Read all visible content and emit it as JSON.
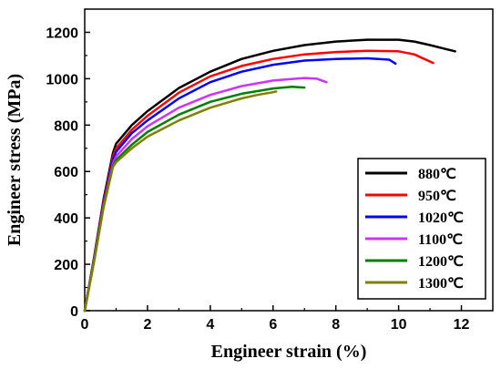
{
  "chart_data": {
    "type": "line",
    "title": "",
    "xlabel": "Engineer strain (%)",
    "ylabel": "Engineer stress (MPa)",
    "xlim": [
      0,
      13
    ],
    "ylim": [
      0,
      1300
    ],
    "xticks": [
      0,
      2,
      4,
      6,
      8,
      10,
      12
    ],
    "yticks": [
      0,
      200,
      400,
      600,
      800,
      1000,
      1200
    ],
    "legend_position": "right-middle",
    "grid": false,
    "series": [
      {
        "name": "880℃",
        "color": "#000000",
        "points": [
          [
            0,
            0
          ],
          [
            0.3,
            230
          ],
          [
            0.6,
            480
          ],
          [
            0.9,
            680
          ],
          [
            1,
            720
          ],
          [
            1.5,
            800
          ],
          [
            2,
            860
          ],
          [
            3,
            960
          ],
          [
            4,
            1030
          ],
          [
            5,
            1085
          ],
          [
            6,
            1120
          ],
          [
            7,
            1145
          ],
          [
            8,
            1160
          ],
          [
            9,
            1168
          ],
          [
            10,
            1168
          ],
          [
            10.5,
            1160
          ],
          [
            11,
            1145
          ],
          [
            11.5,
            1128
          ],
          [
            11.8,
            1118
          ]
        ]
      },
      {
        "name": "950℃",
        "color": "#ff0000",
        "points": [
          [
            0,
            0
          ],
          [
            0.3,
            225
          ],
          [
            0.6,
            470
          ],
          [
            0.9,
            665
          ],
          [
            1,
            700
          ],
          [
            1.5,
            780
          ],
          [
            2,
            840
          ],
          [
            3,
            940
          ],
          [
            4,
            1010
          ],
          [
            5,
            1055
          ],
          [
            6,
            1085
          ],
          [
            7,
            1105
          ],
          [
            8,
            1115
          ],
          [
            9,
            1120
          ],
          [
            10,
            1118
          ],
          [
            10.5,
            1105
          ],
          [
            11.1,
            1068
          ]
        ]
      },
      {
        "name": "1020℃",
        "color": "#0000ff",
        "points": [
          [
            0,
            0
          ],
          [
            0.3,
            222
          ],
          [
            0.6,
            462
          ],
          [
            0.9,
            650
          ],
          [
            1,
            685
          ],
          [
            1.5,
            765
          ],
          [
            2,
            820
          ],
          [
            3,
            915
          ],
          [
            4,
            985
          ],
          [
            5,
            1030
          ],
          [
            6,
            1060
          ],
          [
            7,
            1078
          ],
          [
            8,
            1085
          ],
          [
            9,
            1088
          ],
          [
            9.7,
            1082
          ],
          [
            9.9,
            1065
          ]
        ]
      },
      {
        "name": "1100℃",
        "color": "#cc33ff",
        "points": [
          [
            0,
            0
          ],
          [
            0.3,
            218
          ],
          [
            0.6,
            455
          ],
          [
            0.9,
            635
          ],
          [
            1,
            665
          ],
          [
            1.5,
            740
          ],
          [
            2,
            795
          ],
          [
            3,
            875
          ],
          [
            4,
            930
          ],
          [
            5,
            968
          ],
          [
            6,
            992
          ],
          [
            7,
            1003
          ],
          [
            7.4,
            1000
          ],
          [
            7.7,
            985
          ]
        ]
      },
      {
        "name": "1200℃",
        "color": "#008000",
        "points": [
          [
            0,
            0
          ],
          [
            0.3,
            215
          ],
          [
            0.6,
            450
          ],
          [
            0.9,
            625
          ],
          [
            1,
            650
          ],
          [
            1.5,
            715
          ],
          [
            2,
            770
          ],
          [
            3,
            845
          ],
          [
            4,
            900
          ],
          [
            5,
            935
          ],
          [
            6,
            958
          ],
          [
            6.6,
            965
          ],
          [
            7,
            962
          ]
        ]
      },
      {
        "name": "1300℃",
        "color": "#808000",
        "points": [
          [
            0,
            0
          ],
          [
            0.3,
            212
          ],
          [
            0.6,
            445
          ],
          [
            0.9,
            620
          ],
          [
            1,
            640
          ],
          [
            1.5,
            700
          ],
          [
            2,
            750
          ],
          [
            3,
            820
          ],
          [
            4,
            875
          ],
          [
            5,
            915
          ],
          [
            5.5,
            930
          ],
          [
            6,
            942
          ],
          [
            6.1,
            945
          ]
        ]
      }
    ]
  }
}
